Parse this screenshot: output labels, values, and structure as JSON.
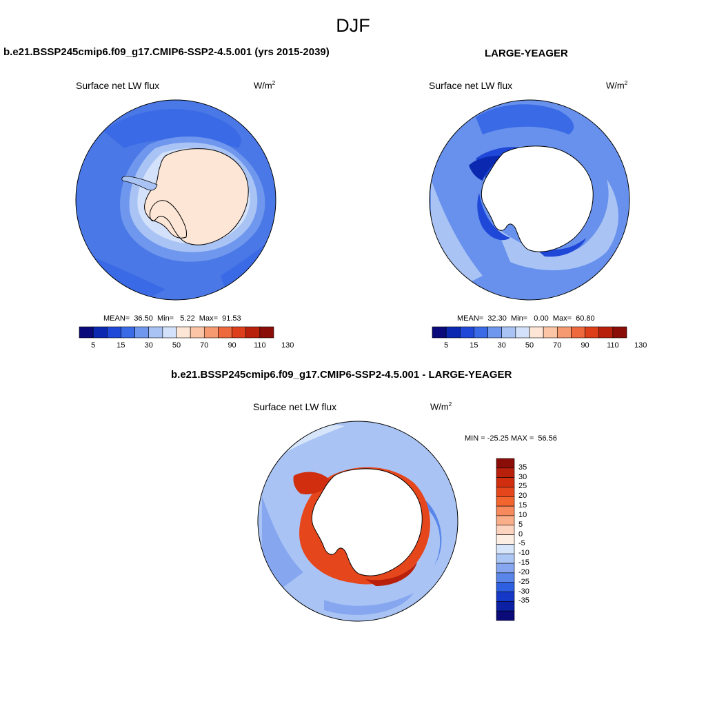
{
  "figure_title": "DJF",
  "panels": [
    {
      "title": "b.e21.BSSP245cmip6.f09_g17.CMIP6-SSP2-4.5.001 (yrs 2015-2039)",
      "variable": "Surface net LW flux",
      "units": "W/m",
      "units_sup": "2",
      "stats": "MEAN=  36.50  Min=   5.22  Max=  91.53",
      "colorbar_labels": [
        "5",
        "15",
        "30",
        "50",
        "70",
        "90",
        "110",
        "130"
      ]
    },
    {
      "title": "LARGE-YEAGER",
      "variable": "Surface net LW flux",
      "units": "W/m",
      "units_sup": "2",
      "stats": "MEAN=  32.30  Min=   0.00  Max=  60.80",
      "colorbar_labels": [
        "5",
        "15",
        "30",
        "50",
        "70",
        "90",
        "110",
        "130"
      ]
    },
    {
      "title": "b.e21.BSSP245cmip6.f09_g17.CMIP6-SSP2-4.5.001 - LARGE-YEAGER",
      "variable": "Surface net LW flux",
      "units": "W/m",
      "units_sup": "2",
      "stats": "MIN = -25.25 MAX =  56.56",
      "colorbar_labels": [
        "35",
        "30",
        "25",
        "20",
        "15",
        "10",
        "5",
        "0",
        "-5",
        "-10",
        "-15",
        "-20",
        "-25",
        "-30",
        "-35"
      ]
    }
  ],
  "colors": {
    "abs_scale": [
      "#0a0a7a",
      "#0a29b0",
      "#1f48d8",
      "#3b6ae6",
      "#6f97ee",
      "#a9c4f4",
      "#d3e2fa",
      "#fde6d6",
      "#fbc5a6",
      "#f69a72",
      "#ee6a3e",
      "#dc3f1a",
      "#b8200c",
      "#8a0d08"
    ],
    "diff_scale": [
      "#8a0d08",
      "#b8200c",
      "#d12e10",
      "#e6461c",
      "#f2652f",
      "#f68a5c",
      "#f9ad88",
      "#fbd3bf",
      "#fdeee3",
      "#d6e5fa",
      "#adc7f4",
      "#86a7ef",
      "#5a86ea",
      "#2e5fe1",
      "#1638c7",
      "#0b20a3",
      "#0a0a78"
    ],
    "ocean_base_abs": "#4a78e6",
    "ocean_base_obs": "#6791ec",
    "ocean_base_diff": "#a9c4f4",
    "land_model": "#fde6d6",
    "positive_diff_ring": "#e6461c"
  }
}
